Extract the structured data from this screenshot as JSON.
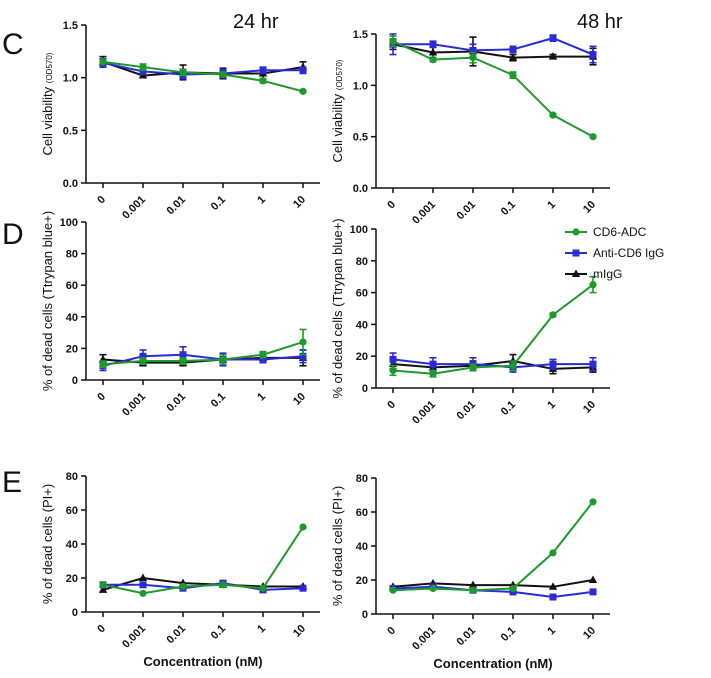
{
  "colors": {
    "CD6-ADC": "#1e9a2c",
    "Anti-CD6 IgG": "#2a2ad6",
    "mIgG": "#111111"
  },
  "panel_letters": [
    "C",
    "D",
    "E"
  ],
  "time_labels": [
    "24 hr",
    "48 hr"
  ],
  "legend": [
    {
      "name": "CD6-ADC",
      "marker": "circle"
    },
    {
      "name": "Anti-CD6 IgG",
      "marker": "square"
    },
    {
      "name": "mIgG",
      "marker": "triangle"
    }
  ],
  "chart_data": [
    {
      "type": "line",
      "panel": "C",
      "time": "24 hr",
      "ylabel_main": "Cell viability ",
      "ylabel_sub": "(OD570)",
      "ylim": [
        0,
        1.5
      ],
      "yticks": [
        "0.0",
        "0.5",
        "1.0",
        "1.5"
      ],
      "categories": [
        "0",
        "0.001",
        "0.01",
        "0.1",
        "1",
        "10"
      ],
      "xlabel": "",
      "series": [
        {
          "name": "CD6-ADC",
          "values": [
            1.15,
            1.1,
            1.05,
            1.03,
            0.97,
            0.87
          ],
          "errors": [
            0.02,
            0.03,
            0.03,
            0.02,
            0.02,
            0.01
          ]
        },
        {
          "name": "Anti-CD6 IgG",
          "values": [
            1.14,
            1.06,
            1.03,
            1.04,
            1.07,
            1.07
          ],
          "errors": [
            0.04,
            0.03,
            0.04,
            0.04,
            0.03,
            0.03
          ]
        },
        {
          "name": "mIgG",
          "values": [
            1.15,
            1.02,
            1.05,
            1.04,
            1.04,
            1.1
          ],
          "errors": [
            0.05,
            0.02,
            0.07,
            0.05,
            0.05,
            0.05
          ]
        }
      ]
    },
    {
      "type": "line",
      "panel": "C",
      "time": "48 hr",
      "ylabel_main": "Cell viability ",
      "ylabel_sub": "(OD570)",
      "ylim": [
        0,
        1.5
      ],
      "yticks": [
        "0.0",
        "0.5",
        "1.0",
        "1.5"
      ],
      "categories": [
        "0",
        "0.001",
        "0.01",
        "0.1",
        "1",
        "10"
      ],
      "xlabel": "",
      "series": [
        {
          "name": "CD6-ADC",
          "values": [
            1.43,
            1.25,
            1.27,
            1.1,
            0.71,
            0.5
          ],
          "errors": [
            0.05,
            0.02,
            0.05,
            0.03,
            0.01,
            0.01
          ]
        },
        {
          "name": "Anti-CD6 IgG",
          "values": [
            1.4,
            1.4,
            1.34,
            1.35,
            1.46,
            1.3
          ],
          "errors": [
            0.1,
            0.03,
            0.06,
            0.03,
            0.03,
            0.08
          ]
        },
        {
          "name": "mIgG",
          "values": [
            1.4,
            1.32,
            1.33,
            1.27,
            1.28,
            1.28
          ],
          "errors": [
            0.05,
            0.05,
            0.14,
            0.03,
            0.02,
            0.08
          ]
        }
      ]
    },
    {
      "type": "line",
      "panel": "D",
      "time": "24 hr",
      "ylabel_main": "% of dead cells (Ttrypan blue+)",
      "ylabel_sub": "",
      "ylim": [
        0,
        100
      ],
      "yticks": [
        "0",
        "20",
        "40",
        "60",
        "80",
        "100"
      ],
      "categories": [
        "0",
        "0.001",
        "0.01",
        "0.1",
        "1",
        "10"
      ],
      "xlabel": "",
      "series": [
        {
          "name": "CD6-ADC",
          "values": [
            10,
            12,
            12,
            13,
            16,
            24
          ],
          "errors": [
            2,
            2,
            2,
            3,
            2,
            8
          ]
        },
        {
          "name": "Anti-CD6 IgG",
          "values": [
            9,
            15,
            16,
            13,
            13,
            15
          ],
          "errors": [
            3,
            4,
            5,
            4,
            2,
            4
          ]
        },
        {
          "name": "mIgG",
          "values": [
            13,
            11,
            11,
            13,
            14,
            14
          ],
          "errors": [
            3,
            2,
            2,
            3,
            3,
            5
          ]
        }
      ]
    },
    {
      "type": "line",
      "panel": "D",
      "time": "48 hr",
      "ylabel_main": "% of dead cells (Ttrypan blue+)",
      "ylabel_sub": "",
      "ylim": [
        0,
        100
      ],
      "yticks": [
        "0",
        "20",
        "40",
        "60",
        "80",
        "100"
      ],
      "categories": [
        "0",
        "0.001",
        "0.01",
        "0.1",
        "1",
        "10"
      ],
      "xlabel": "",
      "series": [
        {
          "name": "CD6-ADC",
          "values": [
            11,
            9,
            13,
            14,
            46,
            65
          ],
          "errors": [
            3,
            2,
            2,
            3,
            1,
            5
          ]
        },
        {
          "name": "Anti-CD6 IgG",
          "values": [
            18,
            15,
            15,
            13,
            15,
            15
          ],
          "errors": [
            4,
            4,
            4,
            3,
            3,
            4
          ]
        },
        {
          "name": "mIgG",
          "values": [
            15,
            13,
            14,
            17,
            12,
            13
          ],
          "errors": [
            3,
            3,
            3,
            4,
            3,
            3
          ]
        }
      ]
    },
    {
      "type": "line",
      "panel": "E",
      "time": "24 hr",
      "ylabel_main": "% of dead cells (PI+)",
      "ylabel_sub": "",
      "ylim": [
        0,
        80
      ],
      "yticks": [
        "0",
        "20",
        "40",
        "60",
        "80"
      ],
      "categories": [
        "0",
        "0.001",
        "0.01",
        "0.1",
        "1",
        "10"
      ],
      "xlabel": "Concentration (nM)",
      "series": [
        {
          "name": "CD6-ADC",
          "values": [
            16,
            11,
            15,
            16,
            14,
            50
          ]
        },
        {
          "name": "Anti-CD6 IgG",
          "values": [
            16,
            16,
            14,
            17,
            13,
            14
          ]
        },
        {
          "name": "mIgG",
          "values": [
            13,
            20,
            17,
            16,
            15,
            15
          ]
        }
      ]
    },
    {
      "type": "line",
      "panel": "E",
      "time": "48 hr",
      "ylabel_main": "% of dead cells (PI+)",
      "ylabel_sub": "",
      "ylim": [
        0,
        80
      ],
      "yticks": [
        "0",
        "20",
        "40",
        "60",
        "80"
      ],
      "categories": [
        "0",
        "0.001",
        "0.01",
        "0.1",
        "1",
        "10"
      ],
      "xlabel": "Concentration (nM)",
      "series": [
        {
          "name": "CD6-ADC",
          "values": [
            14,
            15,
            14,
            15,
            36,
            66
          ]
        },
        {
          "name": "Anti-CD6 IgG",
          "values": [
            15,
            16,
            14,
            13,
            10,
            13
          ]
        },
        {
          "name": "mIgG",
          "values": [
            16,
            18,
            17,
            17,
            16,
            20
          ]
        }
      ]
    }
  ]
}
